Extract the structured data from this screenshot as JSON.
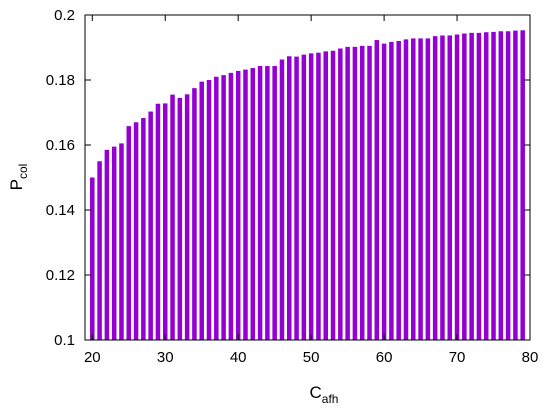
{
  "chart_data": {
    "type": "bar",
    "title": "",
    "xlabel": {
      "main": "C",
      "sub": "afh"
    },
    "ylabel": {
      "main": "P",
      "sub": "col"
    },
    "xlim": [
      19,
      80
    ],
    "ylim": [
      0.1,
      0.2
    ],
    "xticks": [
      "20",
      "30",
      "40",
      "50",
      "60",
      "70",
      "80"
    ],
    "yticks": [
      "0.1",
      "0.12",
      "0.14",
      "0.16",
      "0.18",
      "0.2"
    ],
    "grid": false,
    "legend": "none",
    "bar_color": "#9400D3",
    "x": [
      20,
      21,
      22,
      23,
      24,
      25,
      26,
      27,
      28,
      29,
      30,
      31,
      32,
      33,
      34,
      35,
      36,
      37,
      38,
      39,
      40,
      41,
      42,
      43,
      44,
      45,
      46,
      47,
      48,
      49,
      50,
      51,
      52,
      53,
      54,
      55,
      56,
      57,
      58,
      59,
      60,
      61,
      62,
      63,
      64,
      65,
      66,
      67,
      68,
      69,
      70,
      71,
      72,
      73,
      74,
      75,
      76,
      77,
      78,
      79
    ],
    "values": [
      0.15,
      0.155,
      0.1585,
      0.1595,
      0.1605,
      0.1658,
      0.167,
      0.1683,
      0.1703,
      0.1727,
      0.1728,
      0.1755,
      0.1745,
      0.1756,
      0.1775,
      0.1795,
      0.18,
      0.181,
      0.1815,
      0.1822,
      0.1828,
      0.1832,
      0.1837,
      0.1843,
      0.1843,
      0.1843,
      0.1863,
      0.1873,
      0.1872,
      0.1878,
      0.1882,
      0.1884,
      0.1888,
      0.189,
      0.1897,
      0.1902,
      0.1902,
      0.1905,
      0.1905,
      0.1923,
      0.1912,
      0.1917,
      0.192,
      0.1925,
      0.1928,
      0.1928,
      0.1928,
      0.1935,
      0.1937,
      0.1937,
      0.194,
      0.1943,
      0.1945,
      0.1945,
      0.1947,
      0.1948,
      0.195,
      0.195,
      0.1952,
      0.1953
    ]
  }
}
